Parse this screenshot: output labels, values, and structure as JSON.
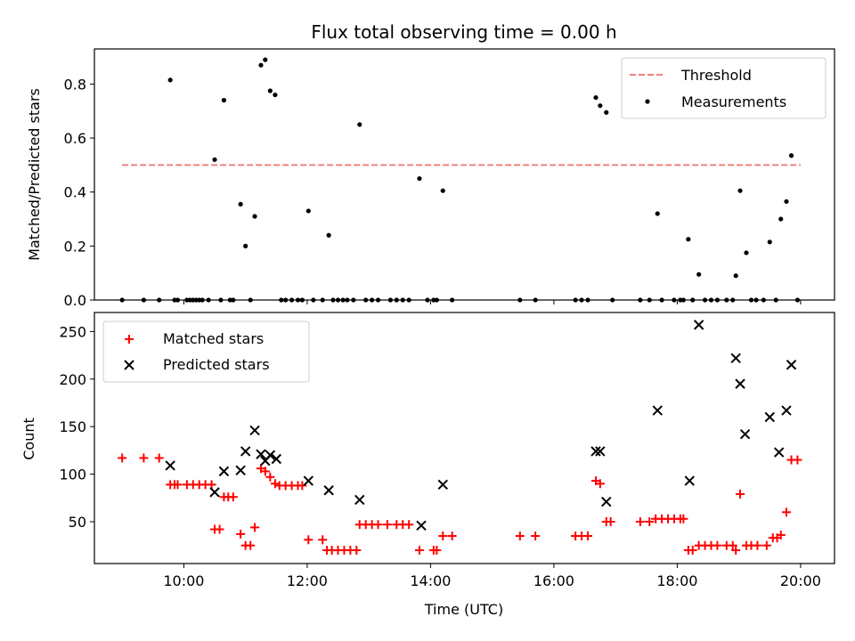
{
  "chart_data": [
    {
      "type": "scatter",
      "title": "Flux total observing time = 0.00 h",
      "ylabel": "Matched/Predicted stars",
      "xlabel": "",
      "xlim": [
        8.55,
        20.55
      ],
      "ylim": [
        0,
        0.93
      ],
      "yticks": [
        "0.0",
        "0.2",
        "0.4",
        "0.6",
        "0.8"
      ],
      "ytick_values": [
        0,
        0.2,
        0.4,
        0.6,
        0.8
      ],
      "xtick_values": [
        10,
        12,
        14,
        16,
        18,
        20
      ],
      "threshold": {
        "name": "Threshold",
        "value": 0.5,
        "x_start": 9.0,
        "x_end": 20.0,
        "color": "#f08080"
      },
      "series": [
        {
          "name": "Measurements",
          "color": "#000000",
          "points": [
            [
              9.0,
              0
            ],
            [
              9.35,
              0
            ],
            [
              9.6,
              0
            ],
            [
              9.78,
              0.815
            ],
            [
              9.85,
              0
            ],
            [
              9.9,
              0
            ],
            [
              10.05,
              0
            ],
            [
              10.1,
              0
            ],
            [
              10.15,
              0
            ],
            [
              10.2,
              0
            ],
            [
              10.25,
              0
            ],
            [
              10.3,
              0
            ],
            [
              10.4,
              0
            ],
            [
              10.5,
              0.52
            ],
            [
              10.6,
              0
            ],
            [
              10.65,
              0.74
            ],
            [
              10.75,
              0
            ],
            [
              10.8,
              0
            ],
            [
              10.92,
              0.355
            ],
            [
              11.0,
              0.2
            ],
            [
              11.08,
              0
            ],
            [
              11.15,
              0.31
            ],
            [
              11.25,
              0.87
            ],
            [
              11.32,
              0.89
            ],
            [
              11.4,
              0.775
            ],
            [
              11.48,
              0.76
            ],
            [
              11.58,
              0
            ],
            [
              11.65,
              0
            ],
            [
              11.75,
              0
            ],
            [
              11.85,
              0
            ],
            [
              11.92,
              0
            ],
            [
              12.02,
              0.33
            ],
            [
              12.1,
              0
            ],
            [
              12.25,
              0
            ],
            [
              12.35,
              0.24
            ],
            [
              12.42,
              0
            ],
            [
              12.5,
              0
            ],
            [
              12.58,
              0
            ],
            [
              12.65,
              0
            ],
            [
              12.75,
              0
            ],
            [
              12.85,
              0.65
            ],
            [
              12.95,
              0
            ],
            [
              13.05,
              0
            ],
            [
              13.15,
              0
            ],
            [
              13.35,
              0
            ],
            [
              13.45,
              0
            ],
            [
              13.55,
              0
            ],
            [
              13.65,
              0
            ],
            [
              13.82,
              0.45
            ],
            [
              13.95,
              0
            ],
            [
              14.05,
              0
            ],
            [
              14.1,
              0
            ],
            [
              14.2,
              0.405
            ],
            [
              14.35,
              0
            ],
            [
              15.45,
              0
            ],
            [
              15.7,
              0
            ],
            [
              16.35,
              0
            ],
            [
              16.45,
              0
            ],
            [
              16.55,
              0
            ],
            [
              16.68,
              0.75
            ],
            [
              16.75,
              0.72
            ],
            [
              16.85,
              0.695
            ],
            [
              16.95,
              0
            ],
            [
              17.4,
              0
            ],
            [
              17.55,
              0
            ],
            [
              17.68,
              0.32
            ],
            [
              17.75,
              0
            ],
            [
              17.95,
              0
            ],
            [
              18.05,
              0
            ],
            [
              18.1,
              0
            ],
            [
              18.18,
              0.225
            ],
            [
              18.25,
              0
            ],
            [
              18.35,
              0.095
            ],
            [
              18.45,
              0
            ],
            [
              18.55,
              0
            ],
            [
              18.65,
              0
            ],
            [
              18.8,
              0
            ],
            [
              18.9,
              0
            ],
            [
              18.95,
              0.09
            ],
            [
              19.02,
              0.405
            ],
            [
              19.12,
              0.175
            ],
            [
              19.2,
              0
            ],
            [
              19.28,
              0
            ],
            [
              19.4,
              0
            ],
            [
              19.5,
              0.215
            ],
            [
              19.6,
              0
            ],
            [
              19.68,
              0.3
            ],
            [
              19.77,
              0.365
            ],
            [
              19.85,
              0.535
            ],
            [
              19.95,
              0
            ]
          ]
        }
      ],
      "legend": {
        "position": "top-right",
        "entries": [
          "Threshold",
          "Measurements"
        ]
      }
    },
    {
      "type": "scatter",
      "title": "",
      "xlabel": "Time (UTC)",
      "ylabel": "Count",
      "xlim": [
        8.55,
        20.55
      ],
      "ylim": [
        6,
        270
      ],
      "xticks": [
        "10:00",
        "12:00",
        "14:00",
        "16:00",
        "18:00",
        "20:00"
      ],
      "xtick_values": [
        10,
        12,
        14,
        16,
        18,
        20
      ],
      "yticks": [
        "50",
        "100",
        "150",
        "200",
        "250"
      ],
      "ytick_values": [
        50,
        100,
        150,
        200,
        250
      ],
      "series": [
        {
          "name": "Matched stars",
          "marker": "plus",
          "color": "#ff0000",
          "points": [
            [
              9.0,
              117
            ],
            [
              9.35,
              117
            ],
            [
              9.6,
              117
            ],
            [
              9.78,
              89
            ],
            [
              9.85,
              89
            ],
            [
              9.9,
              89
            ],
            [
              10.05,
              89
            ],
            [
              10.15,
              89
            ],
            [
              10.25,
              89
            ],
            [
              10.35,
              89
            ],
            [
              10.45,
              89
            ],
            [
              10.5,
              42
            ],
            [
              10.58,
              42
            ],
            [
              10.65,
              76
            ],
            [
              10.72,
              76
            ],
            [
              10.8,
              76
            ],
            [
              10.92,
              37
            ],
            [
              11.0,
              25
            ],
            [
              11.08,
              25
            ],
            [
              11.15,
              44
            ],
            [
              11.25,
              106
            ],
            [
              11.32,
              103
            ],
            [
              11.4,
              97
            ],
            [
              11.48,
              90
            ],
            [
              11.55,
              88
            ],
            [
              11.65,
              88
            ],
            [
              11.75,
              88
            ],
            [
              11.85,
              88
            ],
            [
              11.92,
              88
            ],
            [
              12.02,
              31
            ],
            [
              12.25,
              31
            ],
            [
              12.32,
              20
            ],
            [
              12.4,
              20
            ],
            [
              12.5,
              20
            ],
            [
              12.6,
              20
            ],
            [
              12.7,
              20
            ],
            [
              12.8,
              20
            ],
            [
              12.85,
              47
            ],
            [
              12.95,
              47
            ],
            [
              13.05,
              47
            ],
            [
              13.15,
              47
            ],
            [
              13.3,
              47
            ],
            [
              13.45,
              47
            ],
            [
              13.55,
              47
            ],
            [
              13.65,
              47
            ],
            [
              13.82,
              20
            ],
            [
              14.05,
              20
            ],
            [
              14.1,
              20
            ],
            [
              14.2,
              35
            ],
            [
              14.35,
              35
            ],
            [
              15.45,
              35
            ],
            [
              15.7,
              35
            ],
            [
              16.35,
              35
            ],
            [
              16.45,
              35
            ],
            [
              16.55,
              35
            ],
            [
              16.68,
              93
            ],
            [
              16.75,
              90
            ],
            [
              16.85,
              50
            ],
            [
              16.92,
              50
            ],
            [
              17.4,
              50
            ],
            [
              17.55,
              50
            ],
            [
              17.65,
              53
            ],
            [
              17.75,
              53
            ],
            [
              17.85,
              53
            ],
            [
              17.95,
              53
            ],
            [
              18.05,
              53
            ],
            [
              18.1,
              53
            ],
            [
              18.18,
              20
            ],
            [
              18.25,
              20
            ],
            [
              18.35,
              25
            ],
            [
              18.45,
              25
            ],
            [
              18.55,
              25
            ],
            [
              18.65,
              25
            ],
            [
              18.8,
              25
            ],
            [
              18.9,
              25
            ],
            [
              18.95,
              20
            ],
            [
              19.02,
              79
            ],
            [
              19.12,
              25
            ],
            [
              19.2,
              25
            ],
            [
              19.3,
              25
            ],
            [
              19.45,
              25
            ],
            [
              19.55,
              33
            ],
            [
              19.62,
              33
            ],
            [
              19.68,
              36
            ],
            [
              19.77,
              60
            ],
            [
              19.85,
              115
            ],
            [
              19.95,
              115
            ]
          ]
        },
        {
          "name": "Predicted stars",
          "marker": "x",
          "color": "#000000",
          "points": [
            [
              9.78,
              109
            ],
            [
              10.5,
              81
            ],
            [
              10.65,
              103
            ],
            [
              10.92,
              104
            ],
            [
              11.0,
              124
            ],
            [
              11.15,
              146
            ],
            [
              11.25,
              121
            ],
            [
              11.32,
              114
            ],
            [
              11.4,
              120
            ],
            [
              11.5,
              116
            ],
            [
              12.02,
              93
            ],
            [
              12.35,
              83
            ],
            [
              12.85,
              73
            ],
            [
              13.85,
              46
            ],
            [
              14.2,
              89
            ],
            [
              16.68,
              124
            ],
            [
              16.75,
              124
            ],
            [
              16.85,
              71
            ],
            [
              17.68,
              167
            ],
            [
              18.2,
              93
            ],
            [
              18.35,
              257
            ],
            [
              18.95,
              222
            ],
            [
              19.02,
              195
            ],
            [
              19.1,
              142
            ],
            [
              19.5,
              160
            ],
            [
              19.65,
              123
            ],
            [
              19.77,
              167
            ],
            [
              19.85,
              215
            ]
          ]
        }
      ],
      "legend": {
        "position": "top-left",
        "entries": [
          "Matched stars",
          "Predicted stars"
        ]
      }
    }
  ]
}
